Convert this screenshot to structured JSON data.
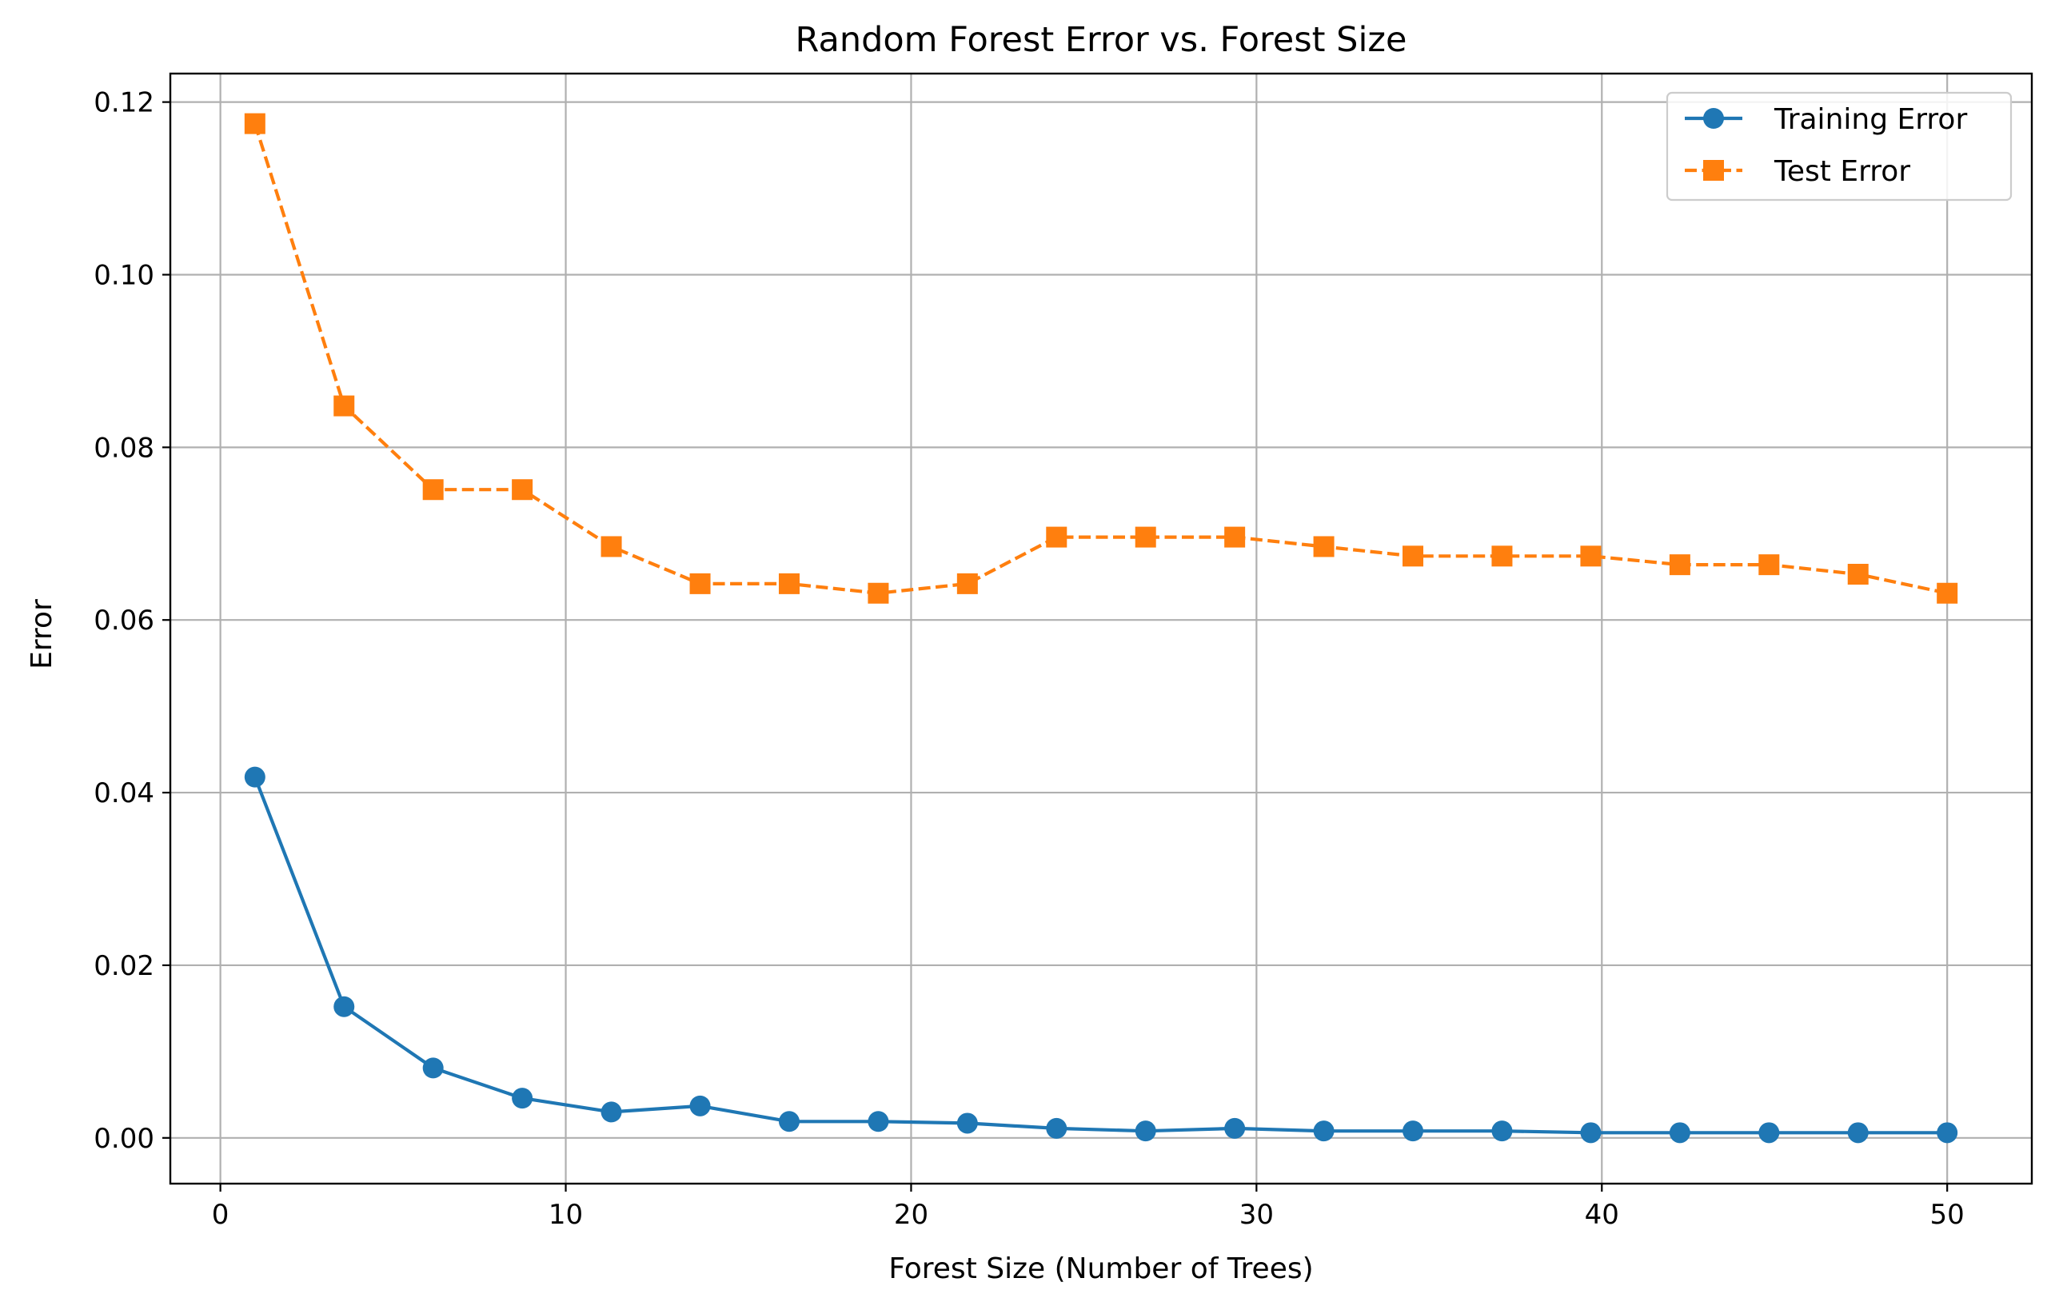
{
  "chart_data": {
    "type": "line",
    "title": "Random Forest Error vs. Forest Size",
    "xlabel": "Forest Size (Number of Trees)",
    "ylabel": "Error",
    "xlim": [
      -1.45,
      52.45
    ],
    "ylim": [
      -0.0053,
      0.1233
    ],
    "xticks": [
      0,
      10,
      20,
      30,
      40,
      50
    ],
    "xtick_labels": [
      "0",
      "10",
      "20",
      "30",
      "40",
      "50"
    ],
    "yticks": [
      0.0,
      0.02,
      0.04,
      0.06,
      0.08,
      0.1,
      0.12
    ],
    "ytick_labels": [
      "0.00",
      "0.02",
      "0.04",
      "0.06",
      "0.08",
      "0.10",
      "0.12"
    ],
    "grid": true,
    "legend_position": "top-right",
    "x": [
      1,
      3.58,
      6.16,
      8.74,
      11.32,
      13.89,
      16.47,
      19.05,
      21.63,
      24.21,
      26.79,
      29.37,
      31.95,
      34.53,
      37.11,
      39.68,
      42.26,
      44.84,
      47.42,
      50
    ],
    "series": [
      {
        "name": "Training Error",
        "color": "#1f77b4",
        "marker": "circle",
        "linestyle": "solid",
        "values": [
          0.0418,
          0.0152,
          0.0081,
          0.0046,
          0.003,
          0.0037,
          0.0019,
          0.0019,
          0.0017,
          0.0011,
          0.0008,
          0.0011,
          0.0008,
          0.0008,
          0.0008,
          0.0006,
          0.0006,
          0.0006,
          0.0006,
          0.0006
        ]
      },
      {
        "name": "Test Error",
        "color": "#ff7f0e",
        "marker": "square",
        "linestyle": "dashed",
        "values": [
          0.1175,
          0.0848,
          0.0751,
          0.0751,
          0.0685,
          0.0642,
          0.0642,
          0.0631,
          0.0642,
          0.0696,
          0.0696,
          0.0696,
          0.0685,
          0.0674,
          0.0674,
          0.0674,
          0.0664,
          0.0664,
          0.0653,
          0.0631
        ]
      }
    ]
  }
}
